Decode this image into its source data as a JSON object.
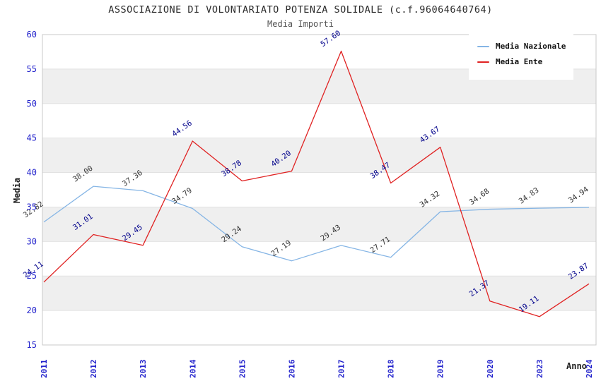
{
  "title": "ASSOCIAZIONE DI VOLONTARIATO POTENZA SOLIDALE (c.f.96064640764)",
  "subtitle": "Media Importi",
  "legend": {
    "items": [
      {
        "label": "Media Nazionale",
        "color": "#85b5e5"
      },
      {
        "label": "Media Ente",
        "color": "#e02222"
      }
    ]
  },
  "chart_data": {
    "type": "line",
    "title": "ASSOCIAZIONE DI VOLONTARIATO POTENZA SOLIDALE (c.f.96064640764)",
    "subtitle": "Media Importi",
    "xlabel": "Anno",
    "ylabel": "Media",
    "x": [
      "2011",
      "2012",
      "2013",
      "2014",
      "2015",
      "2016",
      "2017",
      "2018",
      "2019",
      "2020",
      "2023",
      "2024"
    ],
    "series": [
      {
        "name": "Media Nazionale",
        "color": "#85b5e5",
        "label_color": "#333333",
        "values": [
          32.82,
          38.0,
          37.36,
          34.79,
          29.24,
          27.19,
          29.43,
          27.71,
          34.32,
          34.68,
          34.83,
          34.94
        ]
      },
      {
        "name": "Media Ente",
        "color": "#e02222",
        "label_color": "#00008b",
        "values": [
          24.11,
          31.01,
          29.45,
          44.56,
          38.78,
          40.2,
          57.6,
          38.47,
          43.67,
          21.37,
          19.11,
          23.87
        ]
      }
    ],
    "ylim": [
      15,
      60
    ],
    "ytick_step": 5,
    "yticks": [
      15,
      20,
      25,
      30,
      35,
      40,
      45,
      50,
      55,
      60
    ],
    "grid": true,
    "legend_position": "top-right",
    "tick_label_color": "#2222cc",
    "axis_title_color": "#222222",
    "band_colors": [
      "#ffffff",
      "#efefef"
    ],
    "frame_color": "#c8c8c8",
    "gridline_color": "#e2e2e2"
  }
}
